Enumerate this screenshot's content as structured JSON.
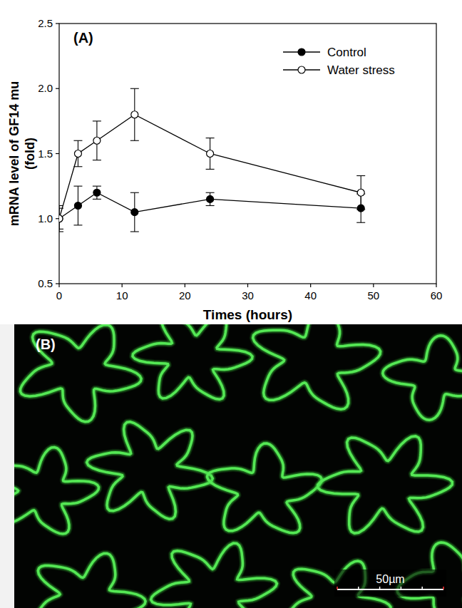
{
  "chart_data": {
    "type": "line",
    "title": "(A)",
    "xlabel": "Times (hours)",
    "ylabel": "mRNA level of GF14 mu\n(fold)",
    "x": [
      0,
      3,
      6,
      12,
      24,
      48
    ],
    "series": [
      {
        "name": "Control",
        "color": "#000000",
        "marker": "filled_circle",
        "line_style": "solid",
        "values": [
          1.0,
          1.1,
          1.2,
          1.05,
          1.15,
          1.08
        ],
        "errors": [
          0.1,
          0.15,
          0.05,
          0.15,
          0.05,
          0.11
        ]
      },
      {
        "name": "Water stress",
        "color": "#000000",
        "marker": "open_circle",
        "line_style": "solid",
        "values": [
          1.0,
          1.5,
          1.6,
          1.8,
          1.5,
          1.2
        ],
        "errors": [
          0.08,
          0.1,
          0.15,
          0.2,
          0.12,
          0.13
        ]
      }
    ],
    "xlim": [
      0,
      60
    ],
    "xticks": [
      0,
      10,
      20,
      30,
      40,
      50,
      60
    ],
    "ylim": [
      0.5,
      2.5
    ],
    "yticks": [
      0.5,
      {
        "value": 1,
        "label": "1.0"
      },
      1.5,
      {
        "value": 2,
        "label": "2.0"
      },
      2.5
    ],
    "grid": false,
    "legend": "upper right"
  },
  "panel_b": {
    "label": "(B)",
    "scale_bar": "50µm"
  }
}
